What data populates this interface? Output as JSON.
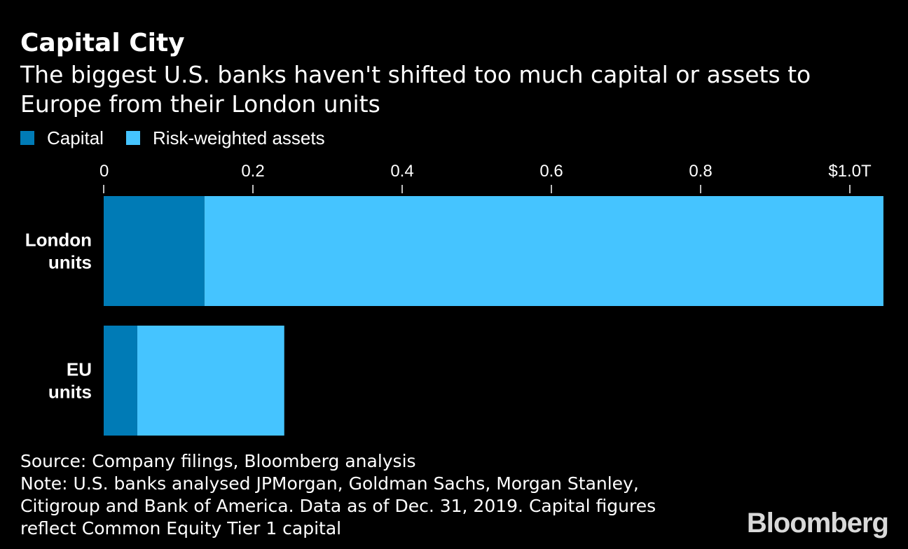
{
  "header": {
    "title": "Capital City",
    "subtitle": "The biggest U.S. banks haven't shifted too much capital or assets to Europe from their London units"
  },
  "footer": {
    "source": "Source: Company filings, Bloomberg analysis",
    "note_line1": "Note: U.S. banks analysed JPMorgan, Goldman Sachs, Morgan Stanley,",
    "note_line2": "Citigroup and Bank of America. Data as of Dec. 31, 2019. Capital figures",
    "note_line3": "reflect Common Equity Tier 1 capital"
  },
  "brand": "Bloomberg",
  "colors": {
    "background": "#000000",
    "capital": "#007bb6",
    "rwa": "#45c4ff",
    "text": "#ffffff"
  },
  "chart_data": {
    "type": "bar",
    "orientation": "horizontal",
    "stacked": true,
    "categories": [
      [
        "London",
        "units"
      ],
      [
        "EU",
        "units"
      ]
    ],
    "series": [
      {
        "name": "Capital",
        "values": [
          0.135,
          0.045
        ]
      },
      {
        "name": "Risk-weighted assets",
        "values": [
          0.91,
          0.197
        ]
      }
    ],
    "xlim": [
      0,
      1.0
    ],
    "xticks": [
      0,
      0.2,
      0.4,
      0.6,
      0.8,
      1.0
    ],
    "xtick_labels": [
      "0",
      "0.2",
      "0.4",
      "0.6",
      "0.8",
      "$1.0T"
    ],
    "axis_position": "top",
    "grid": false,
    "legend_position": "top-left"
  }
}
